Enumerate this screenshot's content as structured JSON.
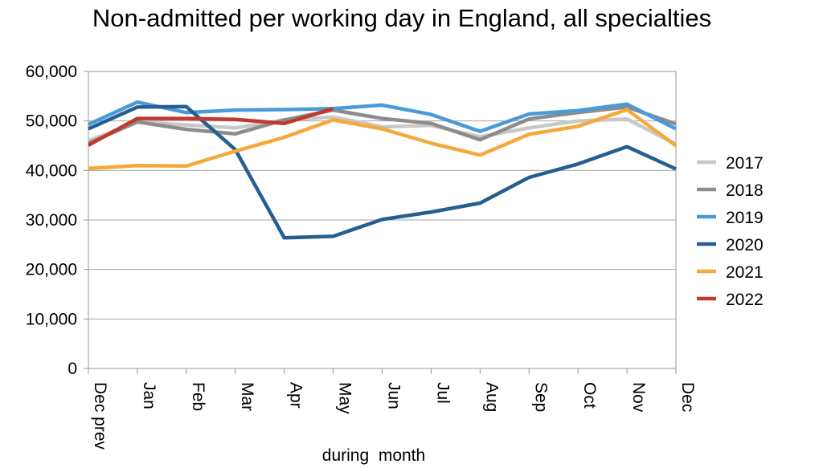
{
  "chart_data": {
    "type": "line",
    "title": "Non-admitted per working day in England, all specialties",
    "xlabel": "during  month",
    "ylabel": "",
    "ylim": [
      0,
      60000
    ],
    "y_ticks": [
      "0",
      "10,000",
      "20,000",
      "30,000",
      "40,000",
      "50,000",
      "60,000"
    ],
    "categories": [
      "Dec prev",
      "Jan",
      "Feb",
      "Mar",
      "Apr",
      "May",
      "Jun",
      "Jul",
      "Aug",
      "Sep",
      "Oct",
      "Nov",
      "Dec"
    ],
    "grid": true,
    "legend_position": "right",
    "series": [
      {
        "name": "2017",
        "color": "#c8c8c8",
        "values": [
          46000,
          49800,
          49200,
          48600,
          50200,
          50800,
          48800,
          49100,
          46800,
          48600,
          50000,
          50400,
          45300
        ]
      },
      {
        "name": "2018",
        "color": "#8c8c8c",
        "values": [
          45500,
          49800,
          48300,
          47400,
          50200,
          52200,
          50500,
          49500,
          46200,
          50400,
          51700,
          52800,
          49400
        ]
      },
      {
        "name": "2019",
        "color": "#4a9ad8",
        "values": [
          49300,
          53800,
          51700,
          52200,
          52300,
          52500,
          53200,
          51300,
          47900,
          51400,
          52100,
          53400,
          48400
        ]
      },
      {
        "name": "2020",
        "color": "#255e91",
        "values": [
          48400,
          52800,
          52900,
          44200,
          26400,
          26700,
          30100,
          31600,
          33400,
          38600,
          41300,
          44800,
          40300
        ]
      },
      {
        "name": "2021",
        "color": "#f5a83c",
        "values": [
          40400,
          41000,
          40900,
          43900,
          46700,
          50200,
          48400,
          45500,
          43100,
          47300,
          48900,
          52300,
          45000
        ]
      },
      {
        "name": "2022",
        "color": "#c0392b",
        "values": [
          45100,
          50500,
          50500,
          50300,
          49500,
          52500,
          null,
          null,
          null,
          null,
          null,
          null,
          null
        ]
      }
    ]
  }
}
